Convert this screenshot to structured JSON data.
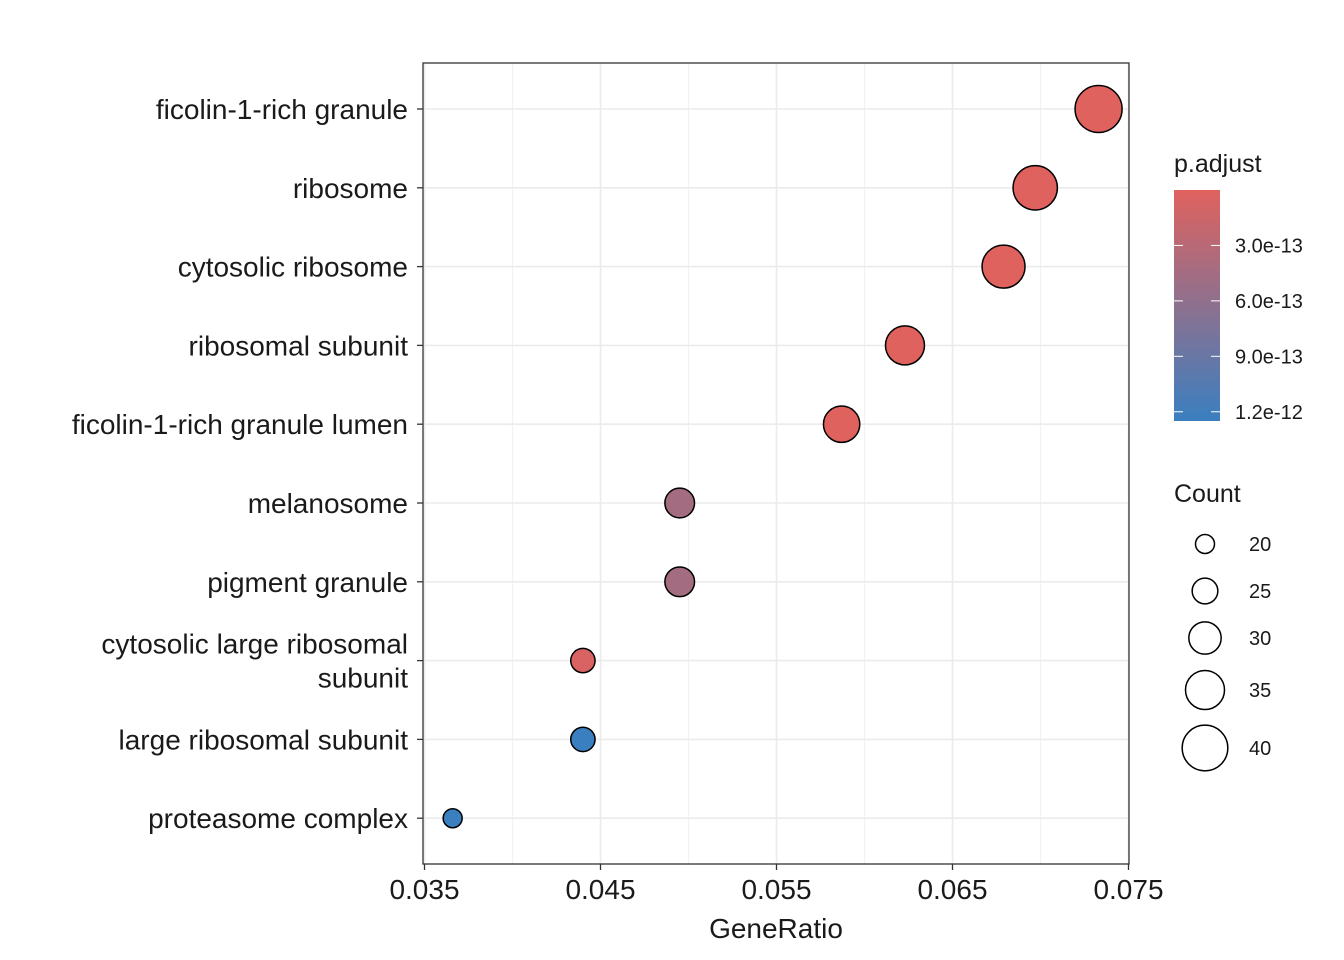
{
  "chart_data": {
    "type": "scatter",
    "title": "",
    "xlabel": "GeneRatio",
    "ylabel": "",
    "xlim": [
      0.035,
      0.075
    ],
    "x_ticks": [
      "0.035",
      "0.045",
      "0.055",
      "0.065",
      "0.075"
    ],
    "grid": true,
    "categories": [
      "ficolin-1-rich granule",
      "ribosome",
      "cytosolic ribosome",
      "ribosomal subunit",
      "ficolin-1-rich granule lumen",
      "melanosome",
      "pigment granule",
      "cytosolic large ribosomal subunit",
      "large ribosomal subunit",
      "proteasome complex"
    ],
    "category_lines": [
      [
        "ficolin-1-rich granule"
      ],
      [
        "ribosome"
      ],
      [
        "cytosolic ribosome"
      ],
      [
        "ribosomal subunit"
      ],
      [
        "ficolin-1-rich granule lumen"
      ],
      [
        "melanosome"
      ],
      [
        "pigment granule"
      ],
      [
        "cytosolic large ribosomal",
        "subunit"
      ],
      [
        "large ribosomal subunit"
      ],
      [
        "proteasome complex"
      ]
    ],
    "points": [
      {
        "category": "ficolin-1-rich granule",
        "gene_ratio": 0.0733,
        "count": 41,
        "p_adjust": 1e-14
      },
      {
        "category": "ribosome",
        "gene_ratio": 0.0697,
        "count": 39,
        "p_adjust": 1e-14
      },
      {
        "category": "cytosolic ribosome",
        "gene_ratio": 0.0679,
        "count": 38,
        "p_adjust": 1e-14
      },
      {
        "category": "ribosomal subunit",
        "gene_ratio": 0.0623,
        "count": 35,
        "p_adjust": 1e-14
      },
      {
        "category": "ficolin-1-rich granule lumen",
        "gene_ratio": 0.0587,
        "count": 33,
        "p_adjust": 1e-14
      },
      {
        "category": "melanosome",
        "gene_ratio": 0.0495,
        "count": 28,
        "p_adjust": 4.5e-13
      },
      {
        "category": "pigment granule",
        "gene_ratio": 0.0495,
        "count": 28,
        "p_adjust": 4.5e-13
      },
      {
        "category": "cytosolic large ribosomal subunit",
        "gene_ratio": 0.044,
        "count": 24,
        "p_adjust": 5e-14
      },
      {
        "category": "large ribosomal subunit",
        "gene_ratio": 0.044,
        "count": 24,
        "p_adjust": 1.25e-12
      },
      {
        "category": "proteasome complex",
        "gene_ratio": 0.0366,
        "count": 20,
        "p_adjust": 1.25e-12
      }
    ],
    "color_legend": {
      "title": "p.adjust",
      "labels": [
        "3.0e-13",
        "6.0e-13",
        "9.0e-13",
        "1.2e-12"
      ],
      "values": [
        3e-13,
        6e-13,
        9e-13,
        1.2e-12
      ],
      "range": [
        0,
        1.25e-12
      ],
      "low_color": "#e0625e",
      "high_color": "#3a7fc0"
    },
    "size_legend": {
      "title": "Count",
      "labels": [
        "20",
        "25",
        "30",
        "35",
        "40"
      ],
      "values": [
        20,
        25,
        30,
        35,
        40
      ]
    }
  }
}
